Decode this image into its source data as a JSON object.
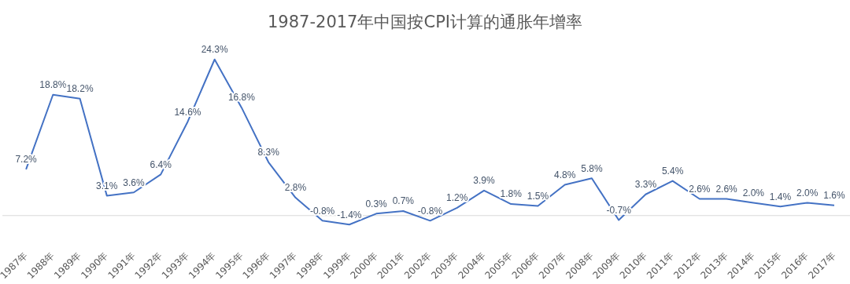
{
  "chart_data": {
    "type": "line",
    "title": "1987-2017年中国按CPI计算的通胀年增率",
    "categories": [
      "1987年",
      "1988年",
      "1989年",
      "1990年",
      "1991年",
      "1992年",
      "1993年",
      "1994年",
      "1995年",
      "1996年",
      "1997年",
      "1998年",
      "1999年",
      "2000年",
      "2001年",
      "2002年",
      "2003年",
      "2004年",
      "2005年",
      "2006年",
      "2007年",
      "2008年",
      "2009年",
      "2010年",
      "2011年",
      "2012年",
      "2013年",
      "2014年",
      "2015年",
      "2016年",
      "2017年"
    ],
    "series": [
      {
        "color": "#4472c4",
        "values": [
          7.2,
          18.8,
          18.2,
          3.1,
          3.6,
          6.4,
          14.6,
          24.3,
          16.8,
          8.3,
          2.8,
          -0.8,
          -1.4,
          0.3,
          0.7,
          -0.8,
          1.2,
          3.9,
          1.8,
          1.5,
          4.8,
          5.8,
          -0.7,
          3.3,
          5.4,
          2.6,
          2.6,
          2.0,
          1.4,
          2.0,
          1.6
        ],
        "value_labels": [
          "7.2%",
          "18.8%",
          "18.2%",
          "3.1%",
          "3.6%",
          "6.4%",
          "14.6%",
          "24.3%",
          "16.8%",
          "8.3%",
          "2.8%",
          "-0.8%",
          "-1.4%",
          "0.3%",
          "0.7%",
          "-0.8%",
          "1.2%",
          "3.9%",
          "1.8%",
          "1.5%",
          "4.8%",
          "5.8%",
          "-0.7%",
          "3.3%",
          "5.4%",
          "2.6%",
          "2.6%",
          "2.0%",
          "1.4%",
          "2.0%",
          "1.6%"
        ]
      }
    ],
    "grid": false,
    "legend": false,
    "line_style": "solid"
  }
}
